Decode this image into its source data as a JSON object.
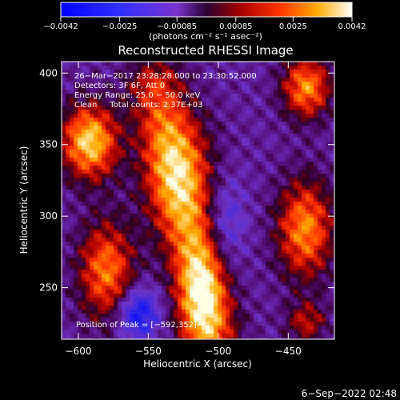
{
  "chart_data": {
    "type": "heatmap",
    "title": "Reconstructed RHESSI Image",
    "xlabel": "Heliocentric X (arcsec)",
    "ylabel": "Heliocentric Y (arcsec)",
    "xlim": [
      -612,
      -417
    ],
    "ylim": [
      214,
      408
    ],
    "x_ticks": [
      -600,
      -550,
      -500,
      -450
    ],
    "y_ticks": [
      250,
      300,
      350,
      400
    ],
    "x_tick_labels": [
      "−600",
      "−550",
      "−500",
      "−450"
    ],
    "y_tick_labels": [
      "250",
      "300",
      "350",
      "400"
    ],
    "colorbar": {
      "range": [
        -0.0042,
        0.0042
      ],
      "ticks": [
        -0.0042,
        -0.0025,
        -0.00085,
        0.00085,
        0.0025,
        0.0042
      ],
      "tick_labels": [
        "−0.0042",
        "−0.0025",
        "−0.00085",
        "0.00085",
        "0.0025",
        "0.0042"
      ],
      "unit_label": "(photons cm⁻² s⁻¹ asec⁻²)"
    },
    "annotations": [
      "26−Mar−2017 23:28:28.000 to 23:30:52.000",
      "Detectors: 3F 6F, Att 0",
      "Energy Range: 25.0 − 50.0 keV",
      "Clean     Total counts: 2.37E+03"
    ],
    "peak_label": "Position of Peak = [−592,352]",
    "sources": [
      {
        "x": -592,
        "y": 352,
        "sx": 14,
        "sy": 18,
        "amp": 1.0
      },
      {
        "x": -580,
        "y": 262,
        "sx": 14,
        "sy": 24,
        "amp": 0.75
      },
      {
        "x": -528,
        "y": 330,
        "sx": 18,
        "sy": 30,
        "amp": 0.55
      },
      {
        "x": -512,
        "y": 244,
        "sx": 12,
        "sy": 28,
        "amp": 0.7
      },
      {
        "x": -437,
        "y": 390,
        "sx": 12,
        "sy": 15,
        "amp": 0.8
      },
      {
        "x": -438,
        "y": 291,
        "sx": 14,
        "sy": 24,
        "amp": 0.8
      },
      {
        "x": -437,
        "y": 226,
        "sx": 10,
        "sy": 10,
        "amp": 0.45
      }
    ],
    "bands": [
      {
        "x1": -545,
        "y1": 390,
        "x2": -505,
        "y2": 222,
        "width": 14,
        "amp": 0.55
      }
    ],
    "negative_spots": [
      {
        "x": -557,
        "y": 232,
        "sx": 10,
        "sy": 12,
        "amp": 0.7
      },
      {
        "x": -495,
        "y": 296,
        "sx": 10,
        "sy": 22,
        "amp": 0.35
      }
    ],
    "grid": false
  },
  "footer": {
    "date": "6−Sep−2022 02:48"
  }
}
